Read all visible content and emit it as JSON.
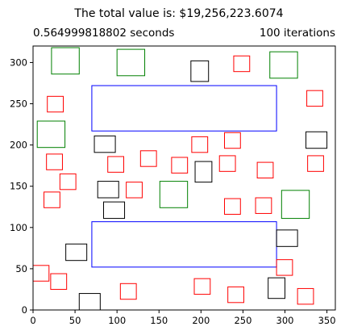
{
  "chart_data": {
    "type": "scatter",
    "title": "The total value is: $19,256,223.6074",
    "left_subtitle": "0.564999818802 seconds",
    "right_subtitle": "100 iterations",
    "xlim": [
      0,
      360
    ],
    "ylim": [
      0,
      320
    ],
    "xticks": [
      0,
      50,
      100,
      150,
      200,
      250,
      300,
      350
    ],
    "yticks": [
      0,
      50,
      100,
      150,
      200,
      250,
      300
    ],
    "grid": false,
    "colors": {
      "blue": "#0000ff",
      "green": "#008000",
      "black": "#000000",
      "red": "#ff0000"
    },
    "rects": [
      {
        "color": "blue",
        "x": 70,
        "y": 217,
        "w": 220,
        "h": 55
      },
      {
        "color": "blue",
        "x": 70,
        "y": 52,
        "w": 220,
        "h": 55
      },
      {
        "color": "green",
        "x": 22,
        "y": 286,
        "w": 33,
        "h": 32
      },
      {
        "color": "green",
        "x": 100,
        "y": 284,
        "w": 33,
        "h": 32
      },
      {
        "color": "green",
        "x": 282,
        "y": 281,
        "w": 33,
        "h": 32
      },
      {
        "color": "green",
        "x": 5,
        "y": 197,
        "w": 33,
        "h": 32
      },
      {
        "color": "green",
        "x": 151,
        "y": 124,
        "w": 33,
        "h": 32
      },
      {
        "color": "green",
        "x": 296,
        "y": 111,
        "w": 33,
        "h": 34
      },
      {
        "color": "black",
        "x": 188,
        "y": 277,
        "w": 21,
        "h": 25
      },
      {
        "color": "black",
        "x": 325,
        "y": 196,
        "w": 25,
        "h": 20
      },
      {
        "color": "black",
        "x": 73,
        "y": 191,
        "w": 25,
        "h": 20
      },
      {
        "color": "black",
        "x": 193,
        "y": 155,
        "w": 20,
        "h": 25
      },
      {
        "color": "black",
        "x": 77,
        "y": 136,
        "w": 25,
        "h": 20
      },
      {
        "color": "black",
        "x": 84,
        "y": 111,
        "w": 25,
        "h": 20
      },
      {
        "color": "black",
        "x": 290,
        "y": 77,
        "w": 25,
        "h": 20
      },
      {
        "color": "black",
        "x": 39,
        "y": 60,
        "w": 25,
        "h": 20
      },
      {
        "color": "black",
        "x": 280,
        "y": 14,
        "w": 20,
        "h": 25
      },
      {
        "color": "black",
        "x": 55,
        "y": 0,
        "w": 25,
        "h": 20
      },
      {
        "color": "red",
        "x": 239,
        "y": 289,
        "w": 19,
        "h": 19
      },
      {
        "color": "red",
        "x": 326,
        "y": 247,
        "w": 19,
        "h": 19
      },
      {
        "color": "red",
        "x": 17,
        "y": 240,
        "w": 19,
        "h": 19
      },
      {
        "color": "red",
        "x": 228,
        "y": 196,
        "w": 19,
        "h": 19
      },
      {
        "color": "red",
        "x": 189,
        "y": 191,
        "w": 19,
        "h": 19
      },
      {
        "color": "red",
        "x": 128,
        "y": 174,
        "w": 19,
        "h": 19
      },
      {
        "color": "red",
        "x": 16,
        "y": 170,
        "w": 19,
        "h": 19
      },
      {
        "color": "red",
        "x": 89,
        "y": 167,
        "w": 19,
        "h": 19
      },
      {
        "color": "red",
        "x": 165,
        "y": 166,
        "w": 19,
        "h": 19
      },
      {
        "color": "red",
        "x": 222,
        "y": 168,
        "w": 19,
        "h": 19
      },
      {
        "color": "red",
        "x": 327,
        "y": 168,
        "w": 19,
        "h": 19
      },
      {
        "color": "red",
        "x": 267,
        "y": 160,
        "w": 19,
        "h": 19
      },
      {
        "color": "red",
        "x": 32,
        "y": 146,
        "w": 19,
        "h": 19
      },
      {
        "color": "red",
        "x": 111,
        "y": 136,
        "w": 19,
        "h": 19
      },
      {
        "color": "red",
        "x": 13,
        "y": 124,
        "w": 19,
        "h": 19
      },
      {
        "color": "red",
        "x": 228,
        "y": 116,
        "w": 19,
        "h": 19
      },
      {
        "color": "red",
        "x": 265,
        "y": 117,
        "w": 19,
        "h": 19
      },
      {
        "color": "red",
        "x": 290,
        "y": 42,
        "w": 19,
        "h": 19
      },
      {
        "color": "red",
        "x": 0,
        "y": 35,
        "w": 19,
        "h": 19
      },
      {
        "color": "red",
        "x": 21,
        "y": 25,
        "w": 19,
        "h": 19
      },
      {
        "color": "red",
        "x": 192,
        "y": 19,
        "w": 19,
        "h": 19
      },
      {
        "color": "red",
        "x": 104,
        "y": 13,
        "w": 19,
        "h": 19
      },
      {
        "color": "red",
        "x": 232,
        "y": 9,
        "w": 19,
        "h": 19
      },
      {
        "color": "red",
        "x": 315,
        "y": 7,
        "w": 19,
        "h": 19
      }
    ]
  }
}
